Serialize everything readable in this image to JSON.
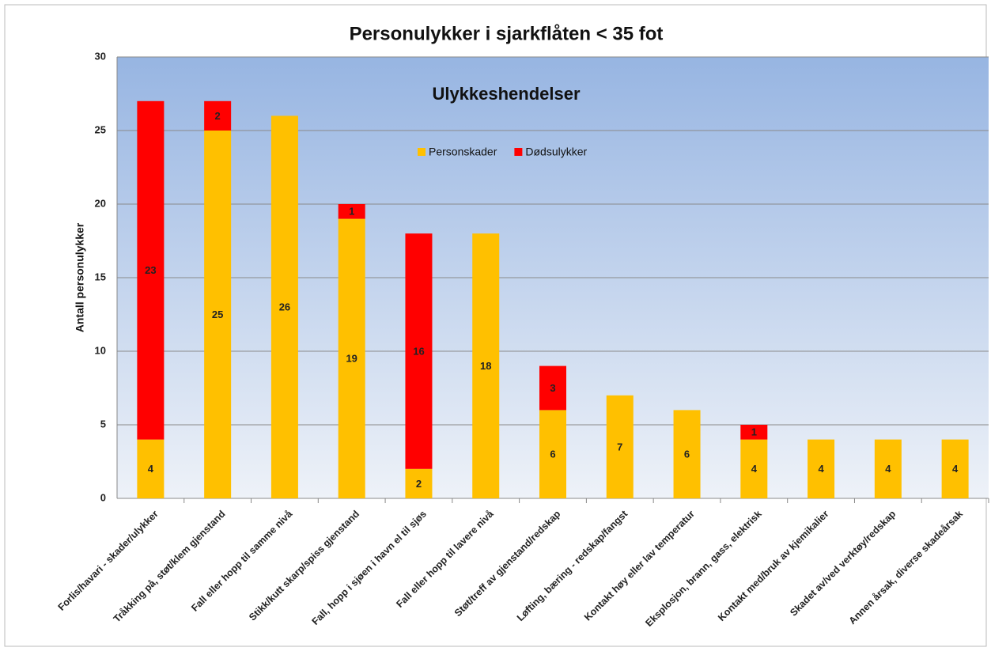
{
  "chart_data": {
    "type": "stacked_bar",
    "title": "Personulykker  i sjarkflåten < 35 fot",
    "subtitle": "Ulykkeshendelser",
    "y_label": "Antall personulykker",
    "categories": [
      "Forlis/havari - skader/ulykker",
      "Tråkking på, støt/klem gjenstand",
      "Fall eller hopp til samme nivå",
      "Stikk/kutt skarp/spiss gjenstand",
      "Fall, hopp i sjøen i havn el til sjøs",
      "Fall eller hopp til lavere nivå",
      "Støt/treff av gjenstand/redskap",
      "Løfting, bæring - redskap/fangst",
      "Kontakt høy eller lav temperatur",
      "Eksplosjon, brann, gass, elektrisk",
      "Kontakt med/bruk av kjemikalier",
      "Skadet av/ved verktøy/redskap",
      "Annen årsak, diverse skadeårsak"
    ],
    "series": [
      {
        "name": "Personskader",
        "color": "#ffc000",
        "values": [
          4,
          25,
          26,
          19,
          2,
          18,
          6,
          7,
          6,
          4,
          4,
          4,
          4
        ]
      },
      {
        "name": "Dødsulykker",
        "color": "#ff0000",
        "values": [
          23,
          2,
          null,
          1,
          16,
          null,
          3,
          null,
          null,
          1,
          null,
          null,
          null
        ]
      }
    ],
    "ylim": [
      0,
      30
    ],
    "yticks": [
      0,
      5,
      10,
      15,
      20,
      25,
      30
    ],
    "grid": true,
    "legend": "top"
  }
}
